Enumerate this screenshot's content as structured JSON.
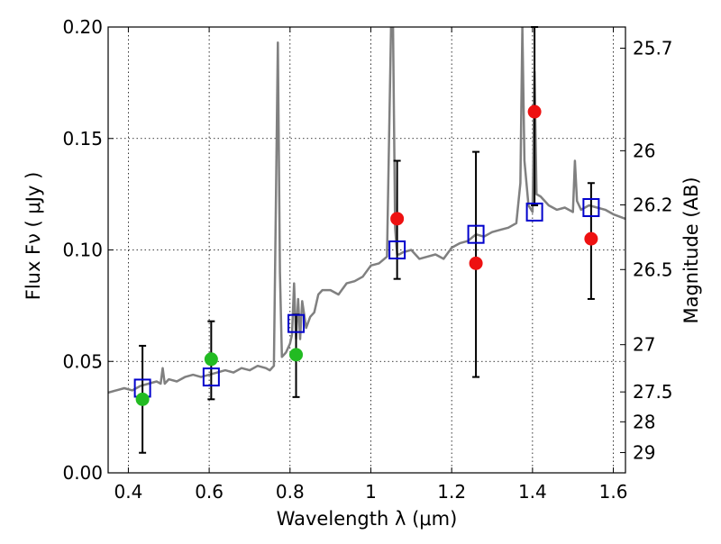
{
  "chart_data": {
    "type": "scatter",
    "xlabel": "Wavelength  λ (μm)",
    "ylabel": "Flux  Fν  ( μJy )",
    "y2label": "Magnitude (AB)",
    "xlim": [
      0.35,
      1.63
    ],
    "ylim": [
      0.0,
      0.2
    ],
    "x_ticks": [
      "0.4",
      "0.6",
      "0.8",
      "1",
      "1.2",
      "1.4",
      "1.6"
    ],
    "y_ticks": [
      "0.00",
      "0.05",
      "0.10",
      "0.15",
      "0.20"
    ],
    "magnitude_ticks": [
      {
        "label": "25.7",
        "flux": 0.1905
      },
      {
        "label": "26",
        "flux": 0.1445
      },
      {
        "label": "26.2",
        "flux": 0.1202
      },
      {
        "label": "26.5",
        "flux": 0.0912
      },
      {
        "label": "27",
        "flux": 0.0575
      },
      {
        "label": "27.5",
        "flux": 0.0363
      },
      {
        "label": "28",
        "flux": 0.0229
      },
      {
        "label": "29",
        "flux": 0.0091
      }
    ],
    "grid": true,
    "colors": {
      "spectrum": "#808080",
      "model_marker": "#0000cc",
      "green_points": "#22bb22",
      "red_points": "#ee1111",
      "errorbar": "#000000"
    },
    "spectrum": {
      "x": [
        0.35,
        0.37,
        0.39,
        0.41,
        0.43,
        0.45,
        0.47,
        0.48,
        0.485,
        0.49,
        0.5,
        0.52,
        0.54,
        0.56,
        0.58,
        0.6,
        0.62,
        0.64,
        0.66,
        0.68,
        0.7,
        0.72,
        0.74,
        0.75,
        0.76,
        0.765,
        0.77,
        0.775,
        0.78,
        0.79,
        0.8,
        0.805,
        0.81,
        0.815,
        0.82,
        0.825,
        0.83,
        0.84,
        0.85,
        0.86,
        0.87,
        0.88,
        0.9,
        0.92,
        0.94,
        0.96,
        0.98,
        1.0,
        1.02,
        1.04,
        1.05,
        1.055,
        1.06,
        1.065,
        1.07,
        1.08,
        1.1,
        1.12,
        1.14,
        1.16,
        1.18,
        1.2,
        1.22,
        1.24,
        1.26,
        1.28,
        1.3,
        1.32,
        1.34,
        1.36,
        1.37,
        1.375,
        1.38,
        1.39,
        1.4,
        1.405,
        1.41,
        1.42,
        1.44,
        1.46,
        1.48,
        1.5,
        1.505,
        1.51,
        1.52,
        1.54,
        1.56,
        1.58,
        1.6,
        1.63
      ],
      "y": [
        0.036,
        0.037,
        0.038,
        0.037,
        0.039,
        0.04,
        0.041,
        0.04,
        0.047,
        0.04,
        0.042,
        0.041,
        0.043,
        0.044,
        0.043,
        0.044,
        0.045,
        0.046,
        0.045,
        0.047,
        0.046,
        0.048,
        0.047,
        0.046,
        0.048,
        0.12,
        0.193,
        0.09,
        0.052,
        0.054,
        0.058,
        0.062,
        0.085,
        0.06,
        0.078,
        0.06,
        0.077,
        0.065,
        0.07,
        0.072,
        0.08,
        0.082,
        0.082,
        0.08,
        0.085,
        0.086,
        0.088,
        0.093,
        0.094,
        0.097,
        0.2,
        0.2,
        0.11,
        0.098,
        0.098,
        0.099,
        0.1,
        0.096,
        0.097,
        0.098,
        0.096,
        0.101,
        0.103,
        0.104,
        0.107,
        0.106,
        0.108,
        0.109,
        0.11,
        0.112,
        0.13,
        0.2,
        0.14,
        0.12,
        0.117,
        0.18,
        0.125,
        0.124,
        0.12,
        0.118,
        0.119,
        0.117,
        0.14,
        0.122,
        0.118,
        0.12,
        0.119,
        0.118,
        0.116,
        0.114
      ]
    },
    "series": [
      {
        "marker": "open-square",
        "color": "#0000cc",
        "points": [
          {
            "x": 0.435,
            "y": 0.038
          },
          {
            "x": 0.605,
            "y": 0.043
          },
          {
            "x": 0.815,
            "y": 0.067
          },
          {
            "x": 1.065,
            "y": 0.1
          },
          {
            "x": 1.26,
            "y": 0.107
          },
          {
            "x": 1.405,
            "y": 0.117
          },
          {
            "x": 1.545,
            "y": 0.119
          }
        ]
      },
      {
        "marker": "filled-circle",
        "color": "#22bb22",
        "points": [
          {
            "x": 0.435,
            "y": 0.033,
            "err_low": 0.009,
            "err_high": 0.057
          },
          {
            "x": 0.605,
            "y": 0.051,
            "err_low": 0.033,
            "err_high": 0.068
          },
          {
            "x": 0.815,
            "y": 0.053,
            "err_low": 0.034,
            "err_high": 0.071
          }
        ]
      },
      {
        "marker": "filled-circle",
        "color": "#ee1111",
        "points": [
          {
            "x": 1.065,
            "y": 0.114,
            "err_low": 0.087,
            "err_high": 0.14
          },
          {
            "x": 1.26,
            "y": 0.094,
            "err_low": 0.043,
            "err_high": 0.144
          },
          {
            "x": 1.405,
            "y": 0.162,
            "err_low": 0.12,
            "err_high": 0.2
          },
          {
            "x": 1.545,
            "y": 0.105,
            "err_low": 0.078,
            "err_high": 0.13
          }
        ]
      }
    ]
  }
}
